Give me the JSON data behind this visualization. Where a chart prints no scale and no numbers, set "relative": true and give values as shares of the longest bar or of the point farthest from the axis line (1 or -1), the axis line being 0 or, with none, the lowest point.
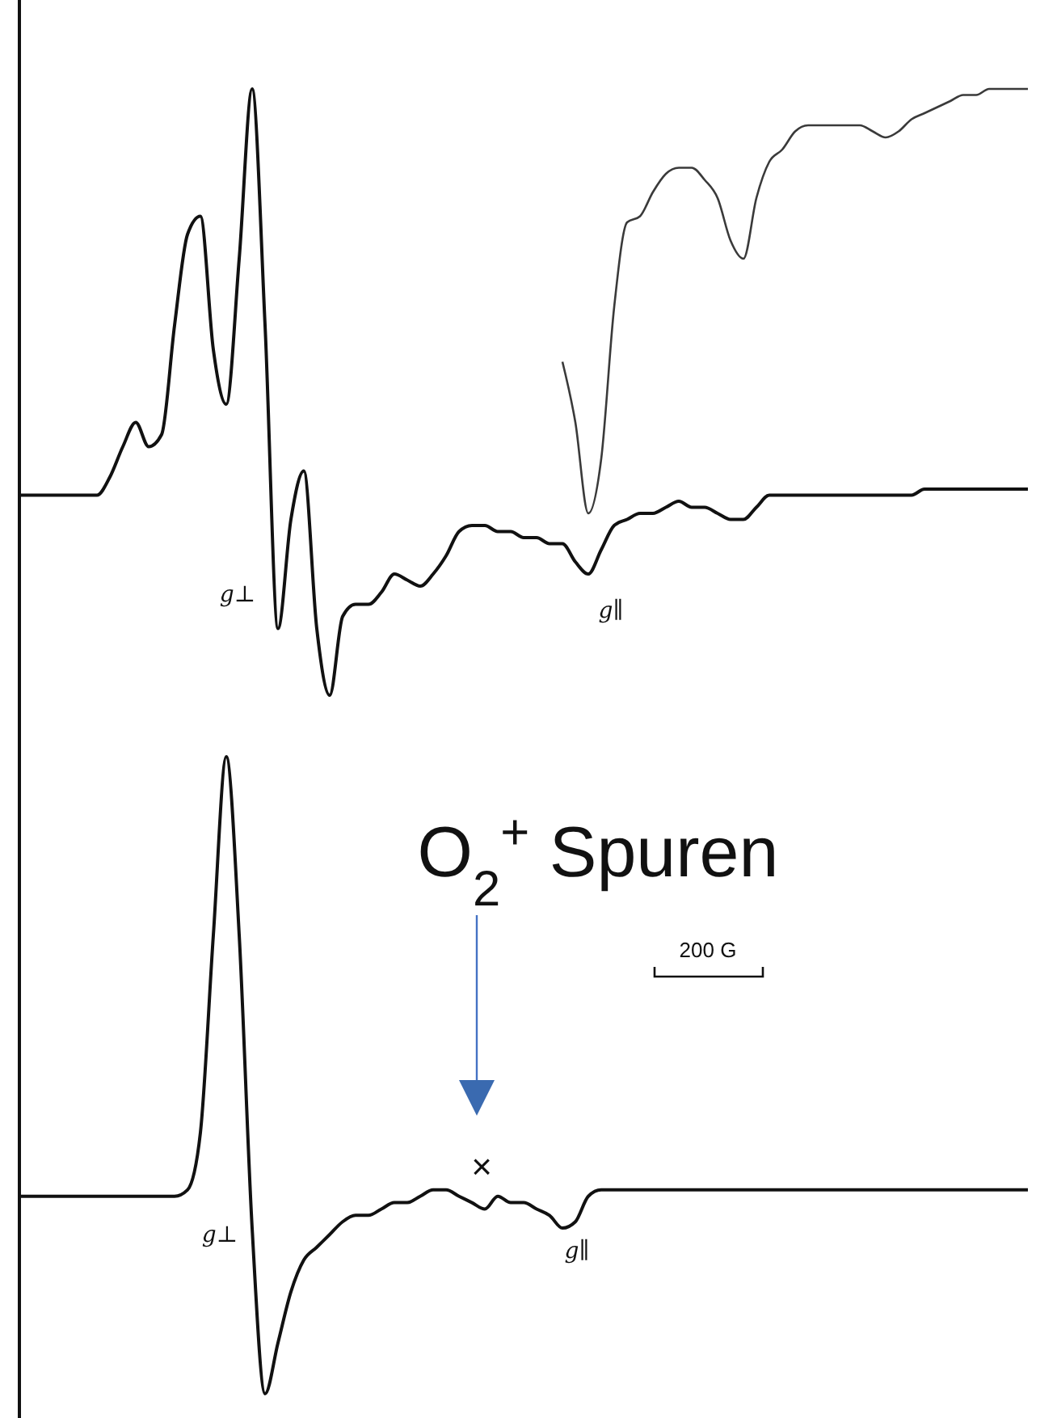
{
  "chart_data": [
    {
      "type": "line",
      "relative": true,
      "categories": [
        null,
        null,
        null,
        null,
        null,
        null,
        null,
        null,
        null,
        null,
        null,
        null,
        null,
        null,
        null,
        null,
        null,
        null,
        null,
        null,
        null,
        null,
        null,
        null,
        null,
        null,
        null,
        null,
        null,
        null,
        null,
        null,
        null,
        null,
        null,
        null,
        null,
        null,
        null,
        null,
        null,
        null,
        null,
        null,
        null,
        null,
        null,
        null,
        null,
        null,
        null,
        null,
        null,
        null,
        null,
        null,
        null,
        null,
        null,
        null,
        null,
        null,
        null,
        null,
        null,
        null,
        null,
        null,
        null,
        null,
        null,
        null,
        null,
        null,
        null,
        null,
        null,
        null,
        null
      ],
      "series": [
        {
          "color": "#111111",
          "values": [
            0.33,
            0.33,
            0.33,
            0.33,
            0.33,
            0.33,
            0.33,
            0.36,
            0.41,
            0.45,
            0.41,
            0.43,
            0.61,
            0.76,
            0.79,
            0.57,
            0.48,
            0.72,
            1,
            0.61,
            0.11,
            0.29,
            0.37,
            0.11,
            0,
            0.13,
            0.15,
            0.15,
            0.17,
            0.2,
            0.19,
            0.18,
            0.2,
            0.23,
            0.27,
            0.28,
            0.28,
            0.27,
            0.27,
            0.26,
            0.26,
            0.25,
            0.25,
            0.22,
            0.2,
            0.24,
            0.28,
            0.29,
            0.3,
            0.3,
            0.31,
            0.32,
            0.31,
            0.31,
            0.3,
            0.29,
            0.29,
            0.31,
            0.33,
            0.33,
            0.33,
            0.33,
            0.33,
            0.33,
            0.33,
            0.33,
            0.33,
            0.33,
            0.33,
            0.33,
            0.34,
            0.34,
            0.34,
            0.34,
            0.34,
            0.34,
            0.34,
            0.34,
            0.34
          ]
        },
        {
          "color": "#3a3a3a",
          "values": [
            null,
            null,
            null,
            null,
            null,
            null,
            null,
            null,
            null,
            null,
            null,
            null,
            null,
            null,
            null,
            null,
            null,
            null,
            null,
            null,
            null,
            null,
            null,
            null,
            null,
            null,
            null,
            null,
            null,
            null,
            null,
            null,
            null,
            null,
            null,
            null,
            null,
            null,
            null,
            null,
            null,
            null,
            0.55,
            0.45,
            0.3,
            0.39,
            0.64,
            0.78,
            0.79,
            0.83,
            0.86,
            0.87,
            0.87,
            0.85,
            0.82,
            0.75,
            0.72,
            0.82,
            0.88,
            0.9,
            0.93,
            0.94,
            0.94,
            0.94,
            0.94,
            0.94,
            0.93,
            0.92,
            0.93,
            0.95,
            0.96,
            0.97,
            0.98,
            0.99,
            0.99,
            1,
            1,
            1,
            1
          ]
        }
      ],
      "annotations": [
        "g⊥",
        "g∥"
      ]
    },
    {
      "type": "line",
      "relative": true,
      "categories": [
        null,
        null,
        null,
        null,
        null,
        null,
        null,
        null,
        null,
        null,
        null,
        null,
        null,
        null,
        null,
        null,
        null,
        null,
        null,
        null,
        null,
        null,
        null,
        null,
        null,
        null,
        null,
        null,
        null,
        null,
        null,
        null,
        null,
        null,
        null,
        null,
        null,
        null,
        null,
        null,
        null,
        null,
        null,
        null,
        null,
        null,
        null,
        null,
        null,
        null,
        null,
        null,
        null,
        null,
        null,
        null,
        null,
        null,
        null,
        null,
        null,
        null,
        null,
        null,
        null,
        null,
        null,
        null,
        null,
        null,
        null,
        null,
        null,
        null,
        null,
        null,
        null,
        null,
        null
      ],
      "series": [
        {
          "color": "#111111",
          "values": [
            0.31,
            0.31,
            0.31,
            0.31,
            0.31,
            0.31,
            0.31,
            0.31,
            0.31,
            0.31,
            0.31,
            0.31,
            0.31,
            0.32,
            0.41,
            0.72,
            1,
            0.72,
            0.26,
            0,
            0.08,
            0.16,
            0.21,
            0.23,
            0.25,
            0.27,
            0.28,
            0.28,
            0.29,
            0.3,
            0.3,
            0.31,
            0.32,
            0.32,
            0.31,
            0.3,
            0.29,
            0.31,
            0.3,
            0.3,
            0.29,
            0.28,
            0.26,
            0.27,
            0.31,
            0.32,
            0.32,
            0.32,
            0.32,
            0.32,
            0.32,
            0.32,
            0.32,
            0.32,
            0.32,
            0.32,
            0.32,
            0.32,
            0.32,
            0.32,
            0.32,
            0.32,
            0.32,
            0.32,
            0.32,
            0.32,
            0.32,
            0.32,
            0.32,
            0.32,
            0.32,
            0.32,
            0.32,
            0.32,
            0.32,
            0.32,
            0.32,
            0.32,
            0.32
          ]
        }
      ],
      "annotations": [
        "g⊥",
        "g∥",
        "×",
        "O$_{2}$$^{+}$ Spuren",
        "200 G"
      ]
    }
  ]
}
